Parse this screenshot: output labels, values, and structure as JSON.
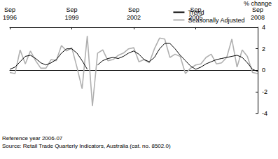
{
  "chart_data": {
    "type": "line",
    "y_label": "% change",
    "notes": [
      "Reference year 2006-07",
      "Source: Retail Trade Quarterly Indicators, Australia (cat. no. 8502.0)"
    ],
    "categories": [
      "Sep\n1996",
      null,
      null,
      null,
      null,
      null,
      null,
      null,
      null,
      null,
      null,
      null,
      "Sep\n1999",
      null,
      null,
      null,
      null,
      null,
      null,
      null,
      null,
      null,
      null,
      null,
      "Sep\n2002",
      null,
      null,
      null,
      null,
      null,
      null,
      null,
      null,
      null,
      null,
      null,
      "Sep\n2005",
      null,
      null,
      null,
      null,
      null,
      null,
      null,
      null,
      null,
      null,
      null,
      "Sep\n2008"
    ],
    "series": [
      {
        "name": "Trend",
        "color": "#000000",
        "values": [
          0.1,
          0.3,
          0.8,
          1.3,
          1.4,
          1.1,
          0.7,
          0.5,
          0.7,
          1.0,
          1.6,
          2.0,
          2.0,
          1.6,
          0.9,
          0.1,
          null,
          0.5,
          0.9,
          1.1,
          1.2,
          1.1,
          1.3,
          1.6,
          1.8,
          1.5,
          1.0,
          0.8,
          1.2,
          2.0,
          2.5,
          2.5,
          2.0,
          1.4,
          0.9,
          0.4,
          0.1,
          0.3,
          0.6,
          0.8,
          1.0,
          1.1,
          1.2,
          1.3,
          1.4,
          1.2,
          0.7,
          0.1,
          -0.1
        ]
      },
      {
        "name": "Seasonally Adjusted",
        "color": "#b0b0b0",
        "values": [
          -0.2,
          -0.3,
          1.9,
          0.6,
          1.8,
          0.9,
          0.2,
          0.2,
          1.0,
          0.9,
          2.3,
          1.8,
          2.1,
          0.3,
          -1.7,
          3.2,
          -3.3,
          1.6,
          1.9,
          0.9,
          1.0,
          1.4,
          1.6,
          2.0,
          2.1,
          0.8,
          1.0,
          0.7,
          2.0,
          3.0,
          2.9,
          1.2,
          1.5,
          1.3,
          -0.3,
          0.2,
          0.5,
          0.6,
          1.2,
          1.5,
          0.6,
          0.7,
          1.2,
          2.9,
          0.3,
          1.9,
          1.3,
          -0.2,
          -0.3
        ]
      }
    ],
    "ylim": [
      -4,
      4
    ],
    "yticks": [
      -4,
      -2,
      0,
      2,
      4
    ],
    "grid": false,
    "legend": "upper right"
  }
}
